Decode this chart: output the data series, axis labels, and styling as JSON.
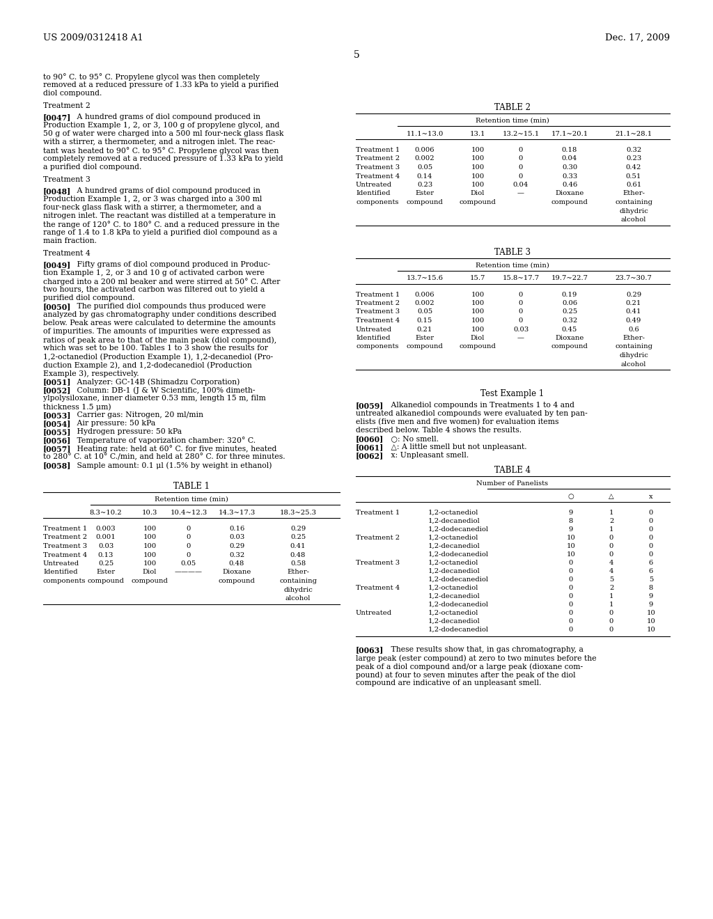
{
  "header_left": "US 2009/0312418 A1",
  "header_right": "Dec. 17, 2009",
  "page_number": "5",
  "table1_title": "TABLE 1",
  "table1_subtitle": "Retention time (min)",
  "table1_col_headers": [
    "",
    "8.3~10.2",
    "10.3",
    "10.4~12.3",
    "14.3~17.3",
    "18.3~25.3"
  ],
  "table1_rows": [
    [
      "Treatment 1",
      "0.003",
      "100",
      "0",
      "0.16",
      "0.29"
    ],
    [
      "Treatment 2",
      "0.001",
      "100",
      "0",
      "0.03",
      "0.25"
    ],
    [
      "Treatment 3",
      "0.03",
      "100",
      "0",
      "0.29",
      "0.41"
    ],
    [
      "Treatment 4",
      "0.13",
      "100",
      "0",
      "0.32",
      "0.48"
    ],
    [
      "Untreated",
      "0.25",
      "100",
      "0.05",
      "0.48",
      "0.58"
    ]
  ],
  "table2_title": "TABLE 2",
  "table2_subtitle": "Retention time (min)",
  "table2_col_headers": [
    "",
    "11.1~13.0",
    "13.1",
    "13.2~15.1",
    "17.1~20.1",
    "21.1~28.1"
  ],
  "table2_rows": [
    [
      "Treatment 1",
      "0.006",
      "100",
      "0",
      "0.18",
      "0.32"
    ],
    [
      "Treatment 2",
      "0.002",
      "100",
      "0",
      "0.04",
      "0.23"
    ],
    [
      "Treatment 3",
      "0.05",
      "100",
      "0",
      "0.30",
      "0.42"
    ],
    [
      "Treatment 4",
      "0.14",
      "100",
      "0",
      "0.33",
      "0.51"
    ],
    [
      "Untreated",
      "0.23",
      "100",
      "0.04",
      "0.46",
      "0.61"
    ]
  ],
  "table3_title": "TABLE 3",
  "table3_subtitle": "Retention time (min)",
  "table3_col_headers": [
    "",
    "13.7~15.6",
    "15.7",
    "15.8~17.7",
    "19.7~22.7",
    "23.7~30.7"
  ],
  "table3_rows": [
    [
      "Treatment 1",
      "0.006",
      "100",
      "0",
      "0.19",
      "0.29"
    ],
    [
      "Treatment 2",
      "0.002",
      "100",
      "0",
      "0.06",
      "0.21"
    ],
    [
      "Treatment 3",
      "0.05",
      "100",
      "0",
      "0.25",
      "0.41"
    ],
    [
      "Treatment 4",
      "0.15",
      "100",
      "0",
      "0.32",
      "0.49"
    ],
    [
      "Untreated",
      "0.21",
      "100",
      "0.03",
      "0.45",
      "0.6"
    ]
  ],
  "table4_title": "TABLE 4",
  "table4_subtitle": "Number of Panelists",
  "table4_data": [
    [
      "Treatment 1",
      "1,2-octanediol",
      "9",
      "1",
      "0"
    ],
    [
      "",
      "1,2-decanediol",
      "8",
      "2",
      "0"
    ],
    [
      "",
      "1,2-dodecanediol",
      "9",
      "1",
      "0"
    ],
    [
      "Treatment 2",
      "1,2-octanediol",
      "10",
      "0",
      "0"
    ],
    [
      "",
      "1,2-decanediol",
      "10",
      "0",
      "0"
    ],
    [
      "",
      "1,2-dodecanediol",
      "10",
      "0",
      "0"
    ],
    [
      "Treatment 3",
      "1,2-octanediol",
      "0",
      "4",
      "6"
    ],
    [
      "",
      "1,2-decanediol",
      "0",
      "4",
      "6"
    ],
    [
      "",
      "1,2-dodecanediol",
      "0",
      "5",
      "5"
    ],
    [
      "Treatment 4",
      "1,2-octanediol",
      "0",
      "2",
      "8"
    ],
    [
      "",
      "1,2-decanediol",
      "0",
      "1",
      "9"
    ],
    [
      "",
      "1,2-dodecanediol",
      "0",
      "1",
      "9"
    ],
    [
      "Untreated",
      "1,2-octanediol",
      "0",
      "0",
      "10"
    ],
    [
      "",
      "1,2-decanediol",
      "0",
      "0",
      "10"
    ],
    [
      "",
      "1,2-dodecanediol",
      "0",
      "0",
      "10"
    ]
  ]
}
